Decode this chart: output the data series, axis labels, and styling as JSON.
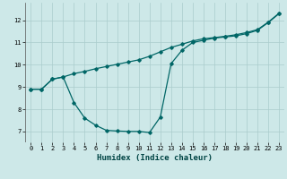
{
  "title": "",
  "xlabel": "Humidex (Indice chaleur)",
  "background_color": "#cde8e8",
  "grid_color": "#aacccc",
  "line_color": "#006666",
  "xlim": [
    -0.5,
    23.5
  ],
  "ylim": [
    6.5,
    12.8
  ],
  "xticks": [
    0,
    1,
    2,
    3,
    4,
    5,
    6,
    7,
    8,
    9,
    10,
    11,
    12,
    13,
    14,
    15,
    16,
    17,
    18,
    19,
    20,
    21,
    22,
    23
  ],
  "yticks": [
    7,
    8,
    9,
    10,
    11,
    12
  ],
  "upper_x": [
    0,
    1,
    2,
    3,
    4,
    5,
    6,
    7,
    8,
    9,
    10,
    11,
    12,
    13,
    14,
    15,
    16,
    17,
    18,
    19,
    20,
    21,
    22,
    23
  ],
  "upper_y": [
    8.9,
    8.9,
    9.35,
    9.45,
    9.6,
    9.7,
    9.82,
    9.92,
    10.02,
    10.12,
    10.22,
    10.38,
    10.58,
    10.78,
    10.92,
    11.07,
    11.17,
    11.22,
    11.28,
    11.35,
    11.45,
    11.58,
    11.92,
    12.32
  ],
  "lower_x": [
    0,
    1,
    2,
    3,
    4,
    5,
    6,
    7,
    8,
    9,
    10,
    11,
    12,
    13,
    14,
    15,
    16,
    17,
    18,
    19,
    20,
    21,
    22,
    23
  ],
  "lower_y": [
    8.9,
    8.9,
    9.35,
    9.45,
    8.3,
    7.6,
    7.28,
    7.05,
    7.02,
    7.0,
    7.0,
    6.95,
    7.65,
    10.05,
    10.65,
    11.0,
    11.1,
    11.2,
    11.25,
    11.3,
    11.4,
    11.55,
    11.9,
    12.3
  ]
}
